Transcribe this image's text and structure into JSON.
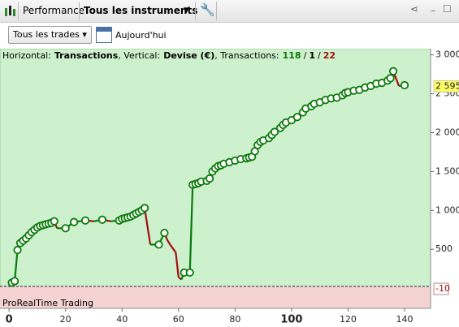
{
  "toolbar": {
    "tab": "Performance",
    "instruments": "Tous les instruments",
    "filter": "Tous les trades",
    "date": "Aujourd'hui"
  },
  "chart_data": {
    "type": "line",
    "info": {
      "horizontal_label": "Horizontal:",
      "horizontal_value": "Transactions",
      "vertical_label": ", Vertical:",
      "vertical_value": "Devise (€)",
      "count_label": ", Transactions:",
      "separator": "/",
      "winning": 118,
      "neutral": 1,
      "losing": 22
    },
    "x": [
      1,
      2,
      3,
      4,
      5,
      6,
      7,
      8,
      9,
      10,
      11,
      12,
      13,
      14,
      15,
      16,
      17,
      20,
      23,
      27,
      30,
      33,
      36,
      39,
      40,
      41,
      42,
      43,
      44,
      45,
      46,
      47,
      48,
      50,
      53,
      55,
      56,
      57,
      59,
      60,
      61,
      62,
      64,
      65,
      66,
      67,
      68,
      70,
      71,
      72,
      73,
      74,
      75,
      76,
      78,
      80,
      82,
      84,
      85,
      86,
      87,
      88,
      89,
      90,
      92,
      93,
      94,
      96,
      97,
      98,
      100,
      102,
      104,
      105,
      107,
      108,
      110,
      112,
      114,
      116,
      118,
      119,
      120,
      122,
      124,
      126,
      128,
      130,
      132,
      134,
      135,
      136,
      138,
      140
    ],
    "series": [
      {
        "name": "Devise (€)",
        "color": "#0b7a0b",
        "down_color": "#a30f0f",
        "values": [
          70,
          90,
          490,
          580,
          610,
          640,
          680,
          720,
          750,
          780,
          800,
          810,
          820,
          830,
          840,
          860,
          770,
          770,
          850,
          870,
          860,
          880,
          860,
          870,
          890,
          900,
          910,
          920,
          940,
          960,
          980,
          1000,
          1030,
          560,
          560,
          710,
          620,
          560,
          460,
          140,
          110,
          200,
          200,
          1330,
          1340,
          1350,
          1370,
          1380,
          1410,
          1500,
          1540,
          1570,
          1580,
          1600,
          1620,
          1640,
          1660,
          1670,
          1680,
          1690,
          1760,
          1840,
          1880,
          1900,
          1930,
          1970,
          2010,
          2060,
          2100,
          2130,
          2160,
          2200,
          2260,
          2310,
          2340,
          2370,
          2390,
          2420,
          2440,
          2450,
          2480,
          2510,
          2520,
          2540,
          2550,
          2580,
          2600,
          2630,
          2640,
          2670,
          2700,
          2790,
          2600,
          2610
        ]
      }
    ],
    "xlim": [
      -3.2,
      149.2
    ],
    "ylim": [
      -260,
      3080
    ],
    "xticks": [
      0,
      20,
      40,
      60,
      80,
      100,
      120,
      140
    ],
    "yticks": [
      {
        "value": 3000,
        "label": "3 000"
      },
      {
        "value": 2500,
        "label": "2 500"
      },
      {
        "value": 2000,
        "label": "2 000"
      },
      {
        "value": 1500,
        "label": "1 500"
      },
      {
        "value": 1000,
        "label": "1 000"
      },
      500
    ],
    "markers": [
      {
        "value": 2595,
        "label": "2 595,"
      },
      {
        "value": -10,
        "label": "-10"
      }
    ],
    "footer": "ProRealTime Trading"
  }
}
